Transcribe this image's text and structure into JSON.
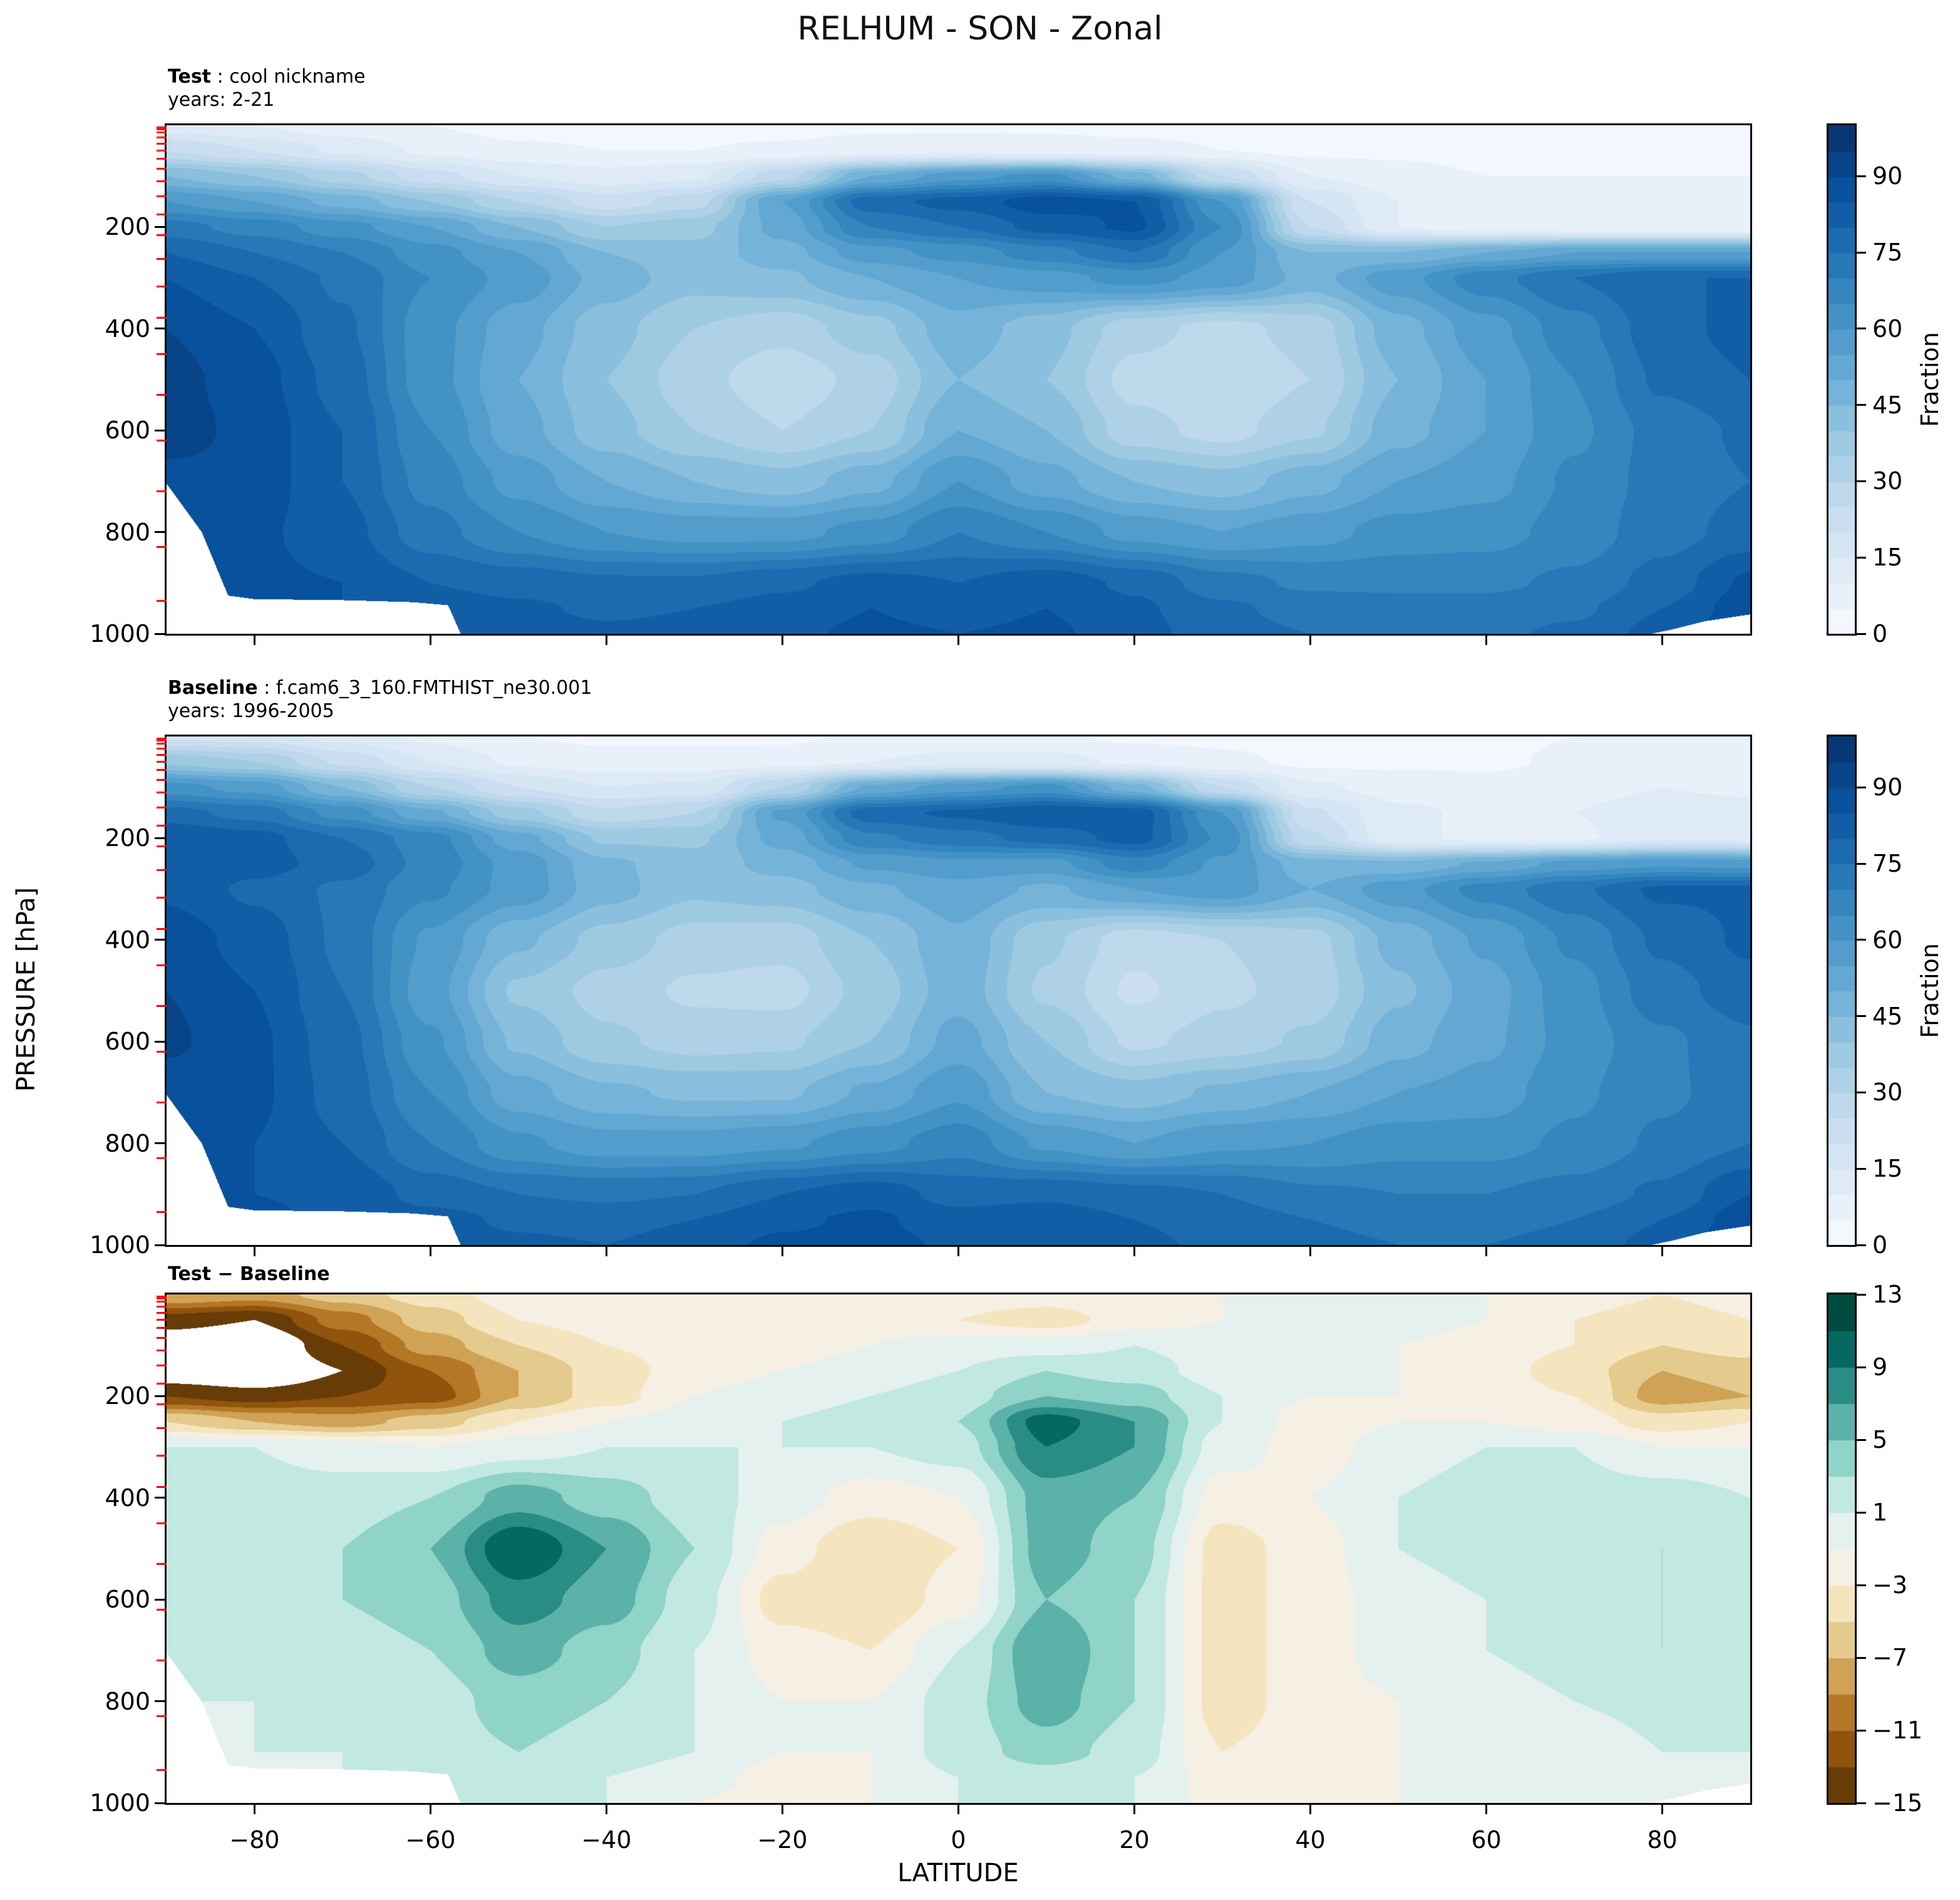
{
  "title": "RELHUM - SON - Zonal",
  "panels": [
    {
      "id": "test",
      "label": "Test",
      "sep": " : ",
      "name": "cool nickname",
      "years": "years: 2-21",
      "colorbar": {
        "label": "Fraction",
        "ticks": [
          0,
          15,
          30,
          45,
          60,
          75,
          90
        ],
        "tick_labels": [
          "0",
          "15",
          "30",
          "45",
          "60",
          "75",
          "90"
        ],
        "min": 0,
        "max": 100,
        "step": 5
      }
    },
    {
      "id": "baseline",
      "label": "Baseline",
      "sep": " : ",
      "name": "f.cam6_3_160.FMTHIST_ne30.001",
      "years": "years: 1996-2005",
      "colorbar": {
        "label": "Fraction",
        "ticks": [
          0,
          15,
          30,
          45,
          60,
          75,
          90
        ],
        "tick_labels": [
          "0",
          "15",
          "30",
          "45",
          "60",
          "75",
          "90"
        ],
        "min": 0,
        "max": 100,
        "step": 5
      }
    },
    {
      "id": "diff",
      "label": "Test − Baseline",
      "sep": "",
      "name": "",
      "years": "",
      "colorbar": {
        "label": "",
        "ticks": [
          13,
          9,
          5,
          1,
          -3,
          -7,
          -11,
          -15
        ],
        "tick_labels": [
          "13",
          "9",
          "5",
          "1",
          "−3",
          "−7",
          "−11",
          "−15"
        ],
        "min": -15,
        "max": 13,
        "step": 2
      }
    }
  ],
  "axes": {
    "ylabel": "PRESSURE [hPa]",
    "xlabel": "LATITUDE",
    "yticks": [
      200,
      400,
      600,
      800,
      1000
    ],
    "ytick_labels": [
      "200",
      "400",
      "600",
      "800",
      "1000"
    ],
    "xticks": [
      -80,
      -60,
      -40,
      -20,
      0,
      20,
      40,
      60,
      80
    ],
    "xtick_labels": [
      "−80",
      "−60",
      "−40",
      "−20",
      "0",
      "20",
      "40",
      "60",
      "80"
    ]
  },
  "colors": {
    "background": "#ffffff",
    "spine": "#000000",
    "mask": "#ffffff",
    "model_level_tick": "#ff0000",
    "blues_stops": [
      "#f7fbff",
      "#deebf7",
      "#c6dbef",
      "#9ecae1",
      "#6baed6",
      "#4292c6",
      "#2171b5",
      "#08519c",
      "#08306b"
    ],
    "brbg_stops": [
      "#543005",
      "#8c510a",
      "#bf812d",
      "#dfc27d",
      "#f6e8c3",
      "#f5f5f5",
      "#c7eae5",
      "#80cdc1",
      "#35978f",
      "#01665e",
      "#003c30"
    ]
  },
  "chart_data": {
    "type": "heatmap",
    "subtype": "filled_contour_latitude_pressure",
    "title": "RELHUM - SON - Zonal",
    "xlabel": "LATITUDE",
    "ylabel": "PRESSURE [hPa]",
    "x_range": [
      -90,
      90
    ],
    "y_range": [
      0,
      1000
    ],
    "y_inverted_note": "pressure increases downward",
    "lat": [
      -90,
      -80,
      -70,
      -60,
      -50,
      -40,
      -30,
      -20,
      -10,
      0,
      10,
      20,
      30,
      40,
      50,
      60,
      70,
      80,
      90
    ],
    "plev_hpa": [
      0,
      50,
      100,
      150,
      200,
      250,
      300,
      400,
      500,
      600,
      700,
      800,
      900,
      950,
      1000
    ],
    "levels_fraction": {
      "min": 0,
      "max": 100,
      "step": 5
    },
    "levels_diff": {
      "min": -15,
      "max": 13,
      "step": 2,
      "below_min_color": "white"
    },
    "model_level_ticks_hpa": [
      4,
      8,
      14,
      24,
      36,
      50,
      66,
      86,
      110,
      140,
      175,
      216,
      263,
      317,
      379,
      450,
      530,
      620,
      720,
      830,
      935
    ],
    "surface_mask_hpa": [
      [
        -90,
        705
      ],
      [
        -86,
        800
      ],
      [
        -83,
        925
      ],
      [
        -80,
        932
      ],
      [
        -70,
        934
      ],
      [
        -62,
        938
      ],
      [
        -58,
        944
      ],
      [
        -56.5,
        1003
      ],
      [
        78,
        1003
      ],
      [
        81,
        992
      ],
      [
        85,
        975
      ],
      [
        90,
        962
      ]
    ],
    "test_values": [
      [
        12,
        10,
        7,
        5,
        3,
        3,
        3,
        3,
        4,
        4,
        4,
        3,
        3,
        3,
        3,
        3,
        3,
        3,
        3
      ],
      [
        25,
        20,
        14,
        9,
        6,
        5,
        5,
        6,
        8,
        9,
        8,
        7,
        5,
        4,
        4,
        3,
        3,
        3,
        3
      ],
      [
        45,
        40,
        32,
        22,
        15,
        12,
        14,
        28,
        50,
        58,
        62,
        48,
        25,
        10,
        7,
        5,
        5,
        5,
        5
      ],
      [
        60,
        55,
        48,
        40,
        30,
        22,
        28,
        55,
        78,
        82,
        88,
        85,
        60,
        20,
        10,
        7,
        6,
        6,
        6
      ],
      [
        72,
        68,
        62,
        55,
        45,
        35,
        38,
        52,
        70,
        75,
        82,
        86,
        65,
        25,
        10,
        7,
        6,
        6,
        6
      ],
      [
        80,
        75,
        70,
        62,
        55,
        45,
        42,
        48,
        58,
        62,
        68,
        75,
        60,
        45,
        45,
        50,
        55,
        55,
        55
      ],
      [
        85,
        80,
        74,
        65,
        58,
        48,
        42,
        44,
        50,
        55,
        58,
        62,
        58,
        48,
        58,
        68,
        75,
        80,
        80
      ],
      [
        90,
        85,
        76,
        62,
        52,
        42,
        35,
        32,
        38,
        48,
        42,
        32,
        28,
        32,
        48,
        58,
        68,
        78,
        82
      ],
      [
        92,
        87,
        78,
        62,
        50,
        40,
        32,
        26,
        32,
        45,
        40,
        28,
        25,
        30,
        45,
        55,
        65,
        76,
        80
      ],
      [
        93,
        88,
        80,
        65,
        52,
        42,
        35,
        30,
        35,
        50,
        45,
        32,
        28,
        34,
        48,
        55,
        64,
        72,
        76
      ],
      [
        88,
        88,
        80,
        68,
        58,
        50,
        45,
        42,
        48,
        60,
        52,
        45,
        42,
        48,
        55,
        58,
        66,
        72,
        75
      ],
      [
        88,
        86,
        82,
        72,
        65,
        60,
        58,
        58,
        62,
        70,
        65,
        58,
        55,
        58,
        62,
        63,
        67,
        73,
        77
      ],
      [
        88,
        86,
        85,
        80,
        78,
        76,
        76,
        79,
        82,
        80,
        83,
        79,
        72,
        69,
        69,
        69,
        71,
        77,
        86
      ],
      [
        88,
        86,
        85,
        83,
        81,
        79,
        80,
        82,
        85,
        83,
        85,
        81,
        76,
        73,
        72,
        72,
        74,
        80,
        88
      ],
      [
        88,
        86,
        85,
        85,
        83,
        81,
        82,
        84,
        86,
        85,
        86,
        82,
        77,
        75,
        74,
        74,
        76,
        82,
        90
      ]
    ],
    "diff_values": [
      [
        -7,
        -8,
        -6,
        -4,
        -2,
        -1,
        -1,
        -1,
        -2,
        -2,
        -2,
        -1,
        -1,
        0,
        0,
        -1,
        -2,
        -3,
        -2
      ],
      [
        -14,
        -15,
        -10,
        -6,
        -3,
        -2,
        -2,
        -2,
        -2,
        -3,
        -4,
        -2,
        -1,
        0,
        0,
        -1,
        -3,
        -4,
        -3
      ],
      [
        -17,
        -18,
        -13,
        -8,
        -5,
        -3,
        -2,
        -2,
        -1,
        0,
        0,
        1,
        0,
        -1,
        -1,
        -2,
        -3,
        -5,
        -4
      ],
      [
        -17,
        -18,
        -15,
        -11,
        -7,
        -4,
        -2,
        -1,
        0,
        1,
        3,
        2,
        0,
        -1,
        -1,
        -2,
        -4,
        -7,
        -6
      ],
      [
        -13,
        -14,
        -13,
        -12,
        -7,
        -4,
        -1,
        0,
        1,
        2,
        5,
        4,
        1,
        -1,
        -1,
        -2,
        -3,
        -8,
        -7
      ],
      [
        -5,
        -7,
        -8,
        -6,
        -3,
        -1,
        0,
        1,
        2,
        3,
        10,
        7,
        1,
        -2,
        -1,
        -1,
        -2,
        -4,
        -3
      ],
      [
        1,
        1,
        0,
        -1,
        0,
        1,
        1,
        1,
        1,
        2,
        9,
        7,
        0,
        -2,
        0,
        1,
        1,
        -1,
        -1
      ],
      [
        2,
        2,
        2,
        3,
        6,
        4,
        2,
        0,
        -2,
        -1,
        6,
        5,
        -2,
        -1,
        1,
        2,
        2,
        2,
        1
      ],
      [
        2,
        2,
        3,
        5,
        11,
        7,
        3,
        -2,
        -5,
        -3,
        6,
        4,
        -4,
        -2,
        1,
        2,
        2,
        3,
        2
      ],
      [
        2,
        2,
        3,
        4,
        8,
        6,
        2,
        -4,
        -5,
        -2,
        5,
        3,
        -4,
        -2,
        0,
        1,
        2,
        3,
        2
      ],
      [
        1,
        2,
        2,
        3,
        6,
        4,
        1,
        -2,
        -3,
        1,
        7,
        3,
        -4,
        -2,
        0,
        1,
        2,
        3,
        2
      ],
      [
        1,
        1,
        2,
        2,
        4,
        3,
        1,
        -1,
        -1,
        2,
        6,
        3,
        -4,
        -2,
        -1,
        0,
        1,
        2,
        2
      ],
      [
        0,
        1,
        1,
        2,
        3,
        2,
        1,
        -1,
        -1,
        2,
        4,
        2,
        -3,
        -2,
        -1,
        -1,
        -1,
        1,
        1
      ],
      [
        0,
        0,
        1,
        1,
        2,
        1,
        0,
        -2,
        -1,
        1,
        2,
        1,
        -2,
        -2,
        -1,
        -1,
        -1,
        0,
        0
      ],
      [
        0,
        0,
        1,
        1,
        2,
        1,
        -1,
        -2,
        -1,
        1,
        2,
        1,
        -2,
        -2,
        -1,
        -1,
        -1,
        0,
        0
      ]
    ],
    "baseline_values_rule": "baseline = test_values - diff_values"
  }
}
